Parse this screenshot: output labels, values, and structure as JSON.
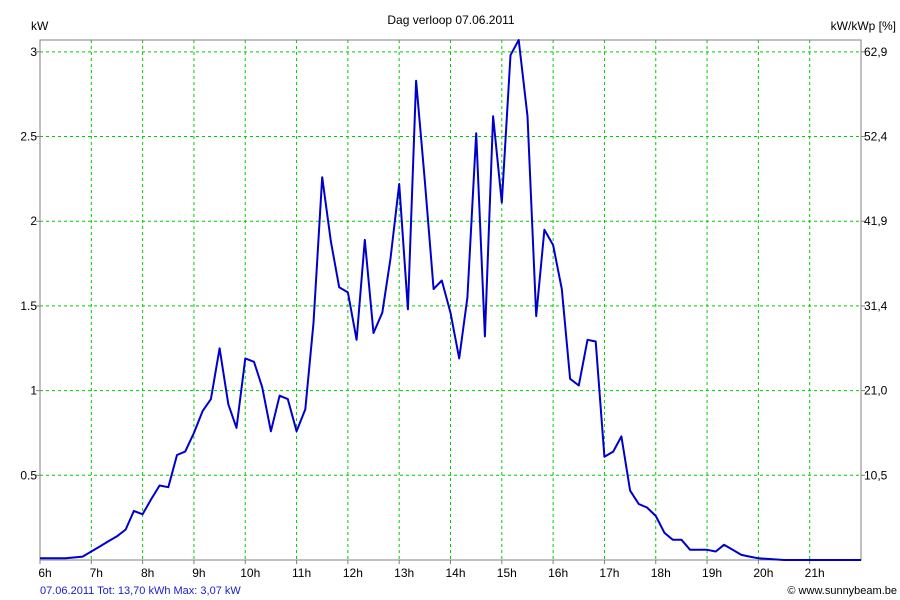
{
  "chart_data": {
    "type": "line",
    "title": "Dag  verloop 07.06.2011",
    "ylabel_left": "kW",
    "ylabel_right": "kW/kWp [%]",
    "x_ticks": [
      "6h",
      "7h",
      "8h",
      "9h",
      "10h",
      "11h",
      "12h",
      "13h",
      "14h",
      "15h",
      "16h",
      "17h",
      "18h",
      "19h",
      "20h",
      "21h"
    ],
    "xlim": [
      6,
      22
    ],
    "ylim": [
      0,
      3.07
    ],
    "y_ticks": [
      {
        "value": 0.5,
        "label": "0.5"
      },
      {
        "value": 1,
        "label": "1"
      },
      {
        "value": 1.5,
        "label": "1.5"
      },
      {
        "value": 2,
        "label": "2"
      },
      {
        "value": 2.5,
        "label": "2.5"
      },
      {
        "value": 3,
        "label": "3"
      }
    ],
    "y2_ticks": [
      {
        "value": 0.5,
        "label": "10,5"
      },
      {
        "value": 1,
        "label": "21,0"
      },
      {
        "value": 1.5,
        "label": "31,4"
      },
      {
        "value": 2,
        "label": "41,9"
      },
      {
        "value": 2.5,
        "label": "52,4"
      },
      {
        "value": 3,
        "label": "62,9"
      }
    ],
    "grid": true,
    "line_color": "#0000cc",
    "grid_color": "#00cc00",
    "series": [
      {
        "x": [
          6.0,
          6.5,
          6.83,
          7.0,
          7.17,
          7.33,
          7.5,
          7.67,
          7.83,
          8.0,
          8.17,
          8.33,
          8.5,
          8.67,
          8.83,
          9.0,
          9.17,
          9.33,
          9.5,
          9.67,
          9.83,
          10.0,
          10.17,
          10.33,
          10.5,
          10.67,
          10.83,
          11.0,
          11.17,
          11.33,
          11.5,
          11.67,
          11.83,
          12.0,
          12.17,
          12.33,
          12.5,
          12.67,
          12.83,
          13.0,
          13.17,
          13.33,
          13.5,
          13.67,
          13.83,
          14.0,
          14.17,
          14.33,
          14.5,
          14.67,
          14.83,
          15.0,
          15.17,
          15.33,
          15.5,
          15.67,
          15.83,
          16.0,
          16.17,
          16.33,
          16.5,
          16.67,
          16.83,
          17.0,
          17.17,
          17.33,
          17.5,
          17.67,
          17.83,
          18.0,
          18.17,
          18.33,
          18.5,
          18.67,
          18.83,
          19.0,
          19.17,
          19.33,
          19.5,
          19.67,
          19.83,
          20.0,
          20.5,
          21.0,
          21.5,
          22.0
        ],
        "y": [
          0.01,
          0.01,
          0.02,
          0.05,
          0.08,
          0.11,
          0.14,
          0.18,
          0.29,
          0.27,
          0.36,
          0.44,
          0.43,
          0.62,
          0.64,
          0.75,
          0.88,
          0.95,
          1.25,
          0.92,
          0.78,
          1.19,
          1.17,
          1.02,
          0.76,
          0.97,
          0.95,
          0.76,
          0.89,
          1.4,
          2.26,
          1.88,
          1.61,
          1.58,
          1.3,
          1.89,
          1.34,
          1.46,
          1.78,
          2.22,
          1.48,
          2.83,
          2.24,
          1.6,
          1.65,
          1.46,
          1.19,
          1.55,
          2.52,
          1.32,
          2.62,
          2.11,
          2.98,
          3.07,
          2.62,
          1.44,
          1.95,
          1.86,
          1.6,
          1.07,
          1.03,
          1.3,
          1.29,
          0.61,
          0.64,
          0.73,
          0.41,
          0.33,
          0.31,
          0.26,
          0.16,
          0.12,
          0.12,
          0.06,
          0.06,
          0.06,
          0.05,
          0.09,
          0.06,
          0.03,
          0.02,
          0.01,
          0.0,
          0.0,
          0.0,
          0.0
        ]
      }
    ]
  },
  "footer": {
    "summary": "07.06.2011 Tot: 13,70 kWh Max: 3,07 kW",
    "credit": "© www.sunnybeam.be"
  },
  "colors": {
    "line": "#0000cc",
    "grid": "#00cc00",
    "footer_summary": "#1a1acc"
  }
}
